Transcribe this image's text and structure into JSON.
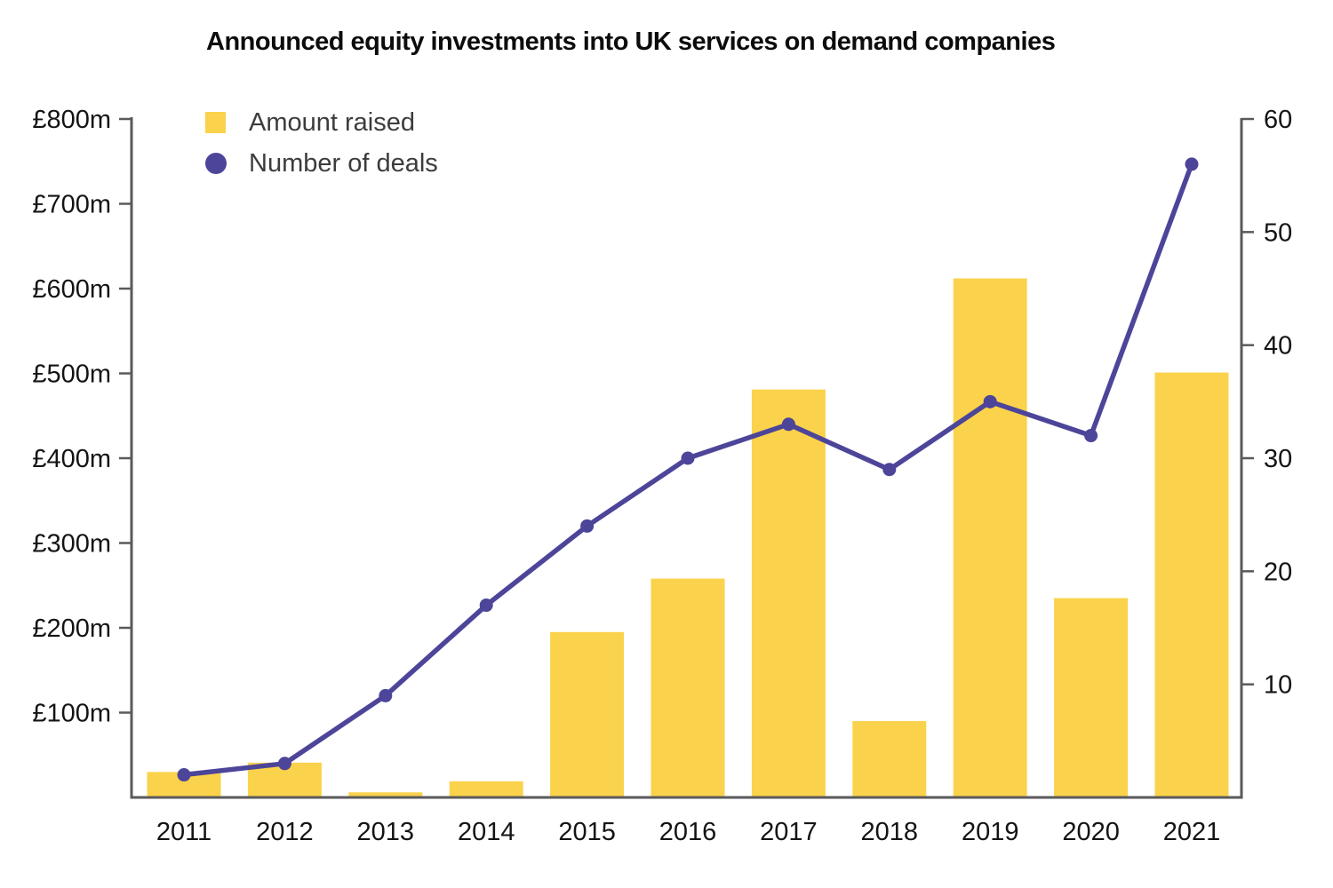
{
  "title": "Announced equity investments into UK services on demand companies",
  "legend": [
    {
      "label": "Amount raised",
      "swatch": "square-icon",
      "color": "#fbd24b"
    },
    {
      "label": "Number of deals",
      "swatch": "circle-icon",
      "color": "#4c4599"
    }
  ],
  "colors": {
    "bar": "#fbd24b",
    "line": "#4c4599",
    "axis": "#5a5a5c",
    "text": "#141414"
  },
  "chart_data": {
    "type": "bar+line combo",
    "title": "Announced equity investments into UK services on demand companies",
    "categories": [
      "2011",
      "2012",
      "2013",
      "2014",
      "2015",
      "2016",
      "2017",
      "2018",
      "2019",
      "2020",
      "2021"
    ],
    "series": [
      {
        "name": "Amount raised",
        "type": "bar",
        "axis": "left",
        "unit": "£m",
        "color": "#fbd24b",
        "values": [
          30,
          41,
          6,
          19,
          195,
          258,
          481,
          90,
          612,
          235,
          501
        ]
      },
      {
        "name": "Number of deals",
        "type": "line",
        "axis": "right",
        "color": "#4c4599",
        "values": [
          2,
          3,
          9,
          17,
          24,
          30,
          33,
          29,
          35,
          32,
          56
        ]
      }
    ],
    "left_axis": {
      "min": 0,
      "max": 800,
      "ticks": [
        {
          "label": "£100m",
          "value": 100
        },
        {
          "label": "£200m",
          "value": 200
        },
        {
          "label": "£300m",
          "value": 300
        },
        {
          "label": "£400m",
          "value": 400
        },
        {
          "label": "£500m",
          "value": 500
        },
        {
          "label": "£600m",
          "value": 600
        },
        {
          "label": "£700m",
          "value": 700
        },
        {
          "label": "£800m",
          "value": 800
        }
      ]
    },
    "right_axis": {
      "min": 0,
      "max": 60,
      "ticks": [
        {
          "label": "10",
          "value": 10
        },
        {
          "label": "20",
          "value": 20
        },
        {
          "label": "30",
          "value": 30
        },
        {
          "label": "40",
          "value": 40
        },
        {
          "label": "50",
          "value": 50
        },
        {
          "label": "60",
          "value": 60
        }
      ]
    },
    "grid": false,
    "legend_position": "top-left"
  }
}
